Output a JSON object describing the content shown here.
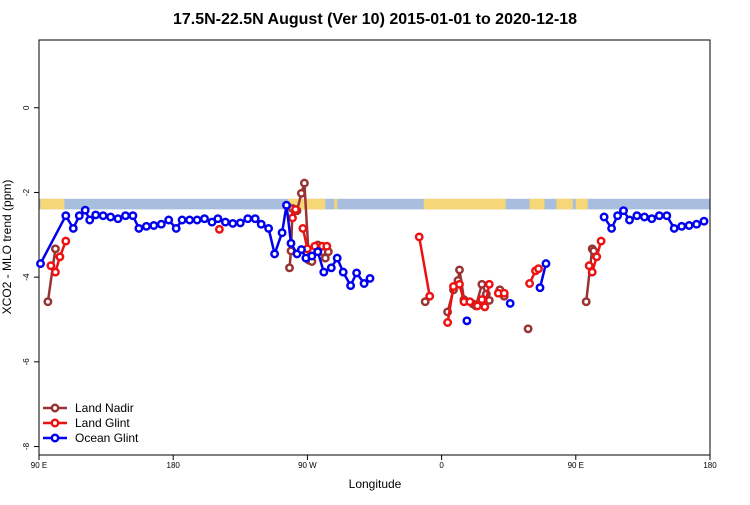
{
  "chart_data": {
    "type": "line",
    "title": "17.5N-22.5N August (Ver 10)   2015-01-01 to 2020-12-18",
    "xlabel": "Longitude",
    "ylabel": "XCO2 - MLO trend (ppm)",
    "xlim": [
      90,
      540
    ],
    "ylim": [
      -8.2,
      1.6
    ],
    "x_ticks": [
      {
        "value": 90,
        "label": "90 E"
      },
      {
        "value": 180,
        "label": "180"
      },
      {
        "value": 270,
        "label": "90 W"
      },
      {
        "value": 360,
        "label": "0"
      },
      {
        "value": 450,
        "label": "90 E"
      },
      {
        "value": 540,
        "label": "180"
      }
    ],
    "y_ticks": [
      0,
      -2,
      -4,
      -6,
      -8
    ],
    "grid": false,
    "legend_position": "bottom-left",
    "land_band": {
      "y_range": [
        -2.4,
        -2.15
      ],
      "ocean_color": "#a8bede",
      "land_color": "#f5d778",
      "land_segments": [
        [
          91,
          107
        ],
        [
          257,
          282
        ],
        [
          288,
          290
        ],
        [
          348,
          403
        ],
        [
          419,
          429
        ],
        [
          437,
          448
        ],
        [
          450,
          458
        ]
      ]
    },
    "series": [
      {
        "name": "Land Nadir",
        "color": "#993333",
        "segments": [
          [
            [
              96,
              -4.58
            ],
            [
              101,
              -3.33
            ]
          ],
          [
            [
              258,
              -3.78
            ],
            [
              259,
              -3.38
            ],
            [
              260,
              -2.38
            ],
            [
              263,
              -2.43
            ],
            [
              266,
              -2.02
            ],
            [
              268,
              -1.78
            ],
            [
              271,
              -3.6
            ],
            [
              273,
              -3.63
            ],
            [
              277,
              -3.24
            ],
            [
              280,
              -3.4
            ],
            [
              282,
              -3.55
            ],
            [
              284,
              -3.4
            ]
          ],
          [
            [
              349,
              -4.58
            ]
          ],
          [
            [
              364,
              -4.82
            ],
            [
              368,
              -4.3
            ],
            [
              371,
              -4.08
            ],
            [
              372,
              -3.83
            ],
            [
              375,
              -4.53
            ],
            [
              381,
              -4.63
            ],
            [
              383,
              -4.68
            ],
            [
              387,
              -4.17
            ],
            [
              390,
              -4.4
            ],
            [
              392,
              -4.55
            ]
          ],
          [
            [
              399,
              -4.3
            ],
            [
              402,
              -4.45
            ]
          ],
          [
            [
              418,
              -5.22
            ]
          ],
          [
            [
              457,
              -4.58
            ],
            [
              461,
              -3.33
            ],
            [
              462,
              -3.38
            ]
          ]
        ]
      },
      {
        "name": "Land Glint",
        "color": "#ee1111",
        "segments": [
          [
            [
              98,
              -3.73
            ],
            [
              101,
              -3.88
            ],
            [
              104,
              -3.52
            ],
            [
              108,
              -3.15
            ]
          ],
          [
            [
              211,
              -2.87
            ]
          ],
          [
            [
              260,
              -2.6
            ],
            [
              262,
              -2.4
            ]
          ],
          [
            [
              267,
              -2.85
            ],
            [
              270,
              -3.33
            ]
          ],
          [
            [
              275,
              -3.27
            ],
            [
              280,
              -3.27
            ],
            [
              283,
              -3.27
            ]
          ],
          [
            [
              345,
              -3.05
            ],
            [
              352,
              -4.45
            ]
          ],
          [
            [
              364,
              -5.07
            ],
            [
              368,
              -4.22
            ],
            [
              372,
              -4.17
            ],
            [
              375,
              -4.58
            ],
            [
              379,
              -4.58
            ],
            [
              384,
              -4.68
            ],
            [
              387,
              -4.53
            ],
            [
              389,
              -4.7
            ],
            [
              392,
              -4.17
            ]
          ],
          [
            [
              398,
              -4.38
            ],
            [
              402,
              -4.38
            ]
          ],
          [
            [
              419,
              -4.15
            ],
            [
              423,
              -3.85
            ],
            [
              425,
              -3.8
            ]
          ],
          [
            [
              459,
              -3.73
            ],
            [
              461,
              -3.88
            ],
            [
              464,
              -3.52
            ],
            [
              467,
              -3.15
            ]
          ]
        ]
      },
      {
        "name": "Ocean Glint",
        "color": "#0000ee",
        "segments": [
          [
            [
              91,
              -3.68
            ],
            [
              108,
              -2.55
            ],
            [
              113,
              -2.85
            ],
            [
              117,
              -2.55
            ],
            [
              121,
              -2.42
            ],
            [
              124,
              -2.65
            ],
            [
              128,
              -2.53
            ],
            [
              133,
              -2.55
            ],
            [
              138,
              -2.58
            ],
            [
              143,
              -2.62
            ],
            [
              148,
              -2.55
            ],
            [
              153,
              -2.55
            ],
            [
              157,
              -2.85
            ],
            [
              162,
              -2.8
            ],
            [
              167,
              -2.78
            ],
            [
              172,
              -2.75
            ],
            [
              177,
              -2.65
            ],
            [
              182,
              -2.85
            ],
            [
              186,
              -2.65
            ],
            [
              191,
              -2.65
            ],
            [
              196,
              -2.65
            ],
            [
              201,
              -2.62
            ],
            [
              206,
              -2.7
            ],
            [
              210,
              -2.62
            ],
            [
              215,
              -2.7
            ],
            [
              220,
              -2.73
            ],
            [
              225,
              -2.72
            ],
            [
              230,
              -2.62
            ],
            [
              235,
              -2.62
            ],
            [
              239,
              -2.75
            ],
            [
              244,
              -2.85
            ],
            [
              248,
              -3.45
            ],
            [
              253,
              -2.95
            ],
            [
              256,
              -2.3
            ],
            [
              259,
              -3.2
            ],
            [
              263,
              -3.45
            ],
            [
              266,
              -3.35
            ],
            [
              269,
              -3.55
            ],
            [
              273,
              -3.5
            ],
            [
              277,
              -3.4
            ],
            [
              281,
              -3.88
            ],
            [
              286,
              -3.78
            ],
            [
              290,
              -3.55
            ],
            [
              294,
              -3.88
            ],
            [
              299,
              -4.2
            ],
            [
              303,
              -3.9
            ],
            [
              308,
              -4.15
            ],
            [
              312,
              -4.03
            ]
          ],
          [
            [
              377,
              -5.03
            ]
          ],
          [
            [
              406,
              -4.62
            ]
          ],
          [
            [
              426,
              -4.25
            ],
            [
              430,
              -3.68
            ]
          ],
          [
            [
              469,
              -2.58
            ],
            [
              474,
              -2.85
            ],
            [
              478,
              -2.55
            ],
            [
              482,
              -2.43
            ],
            [
              486,
              -2.65
            ],
            [
              491,
              -2.55
            ],
            [
              496,
              -2.58
            ],
            [
              501,
              -2.62
            ],
            [
              506,
              -2.55
            ],
            [
              511,
              -2.55
            ],
            [
              516,
              -2.85
            ],
            [
              521,
              -2.8
            ],
            [
              526,
              -2.78
            ],
            [
              531,
              -2.75
            ],
            [
              536,
              -2.68
            ]
          ]
        ]
      }
    ]
  }
}
